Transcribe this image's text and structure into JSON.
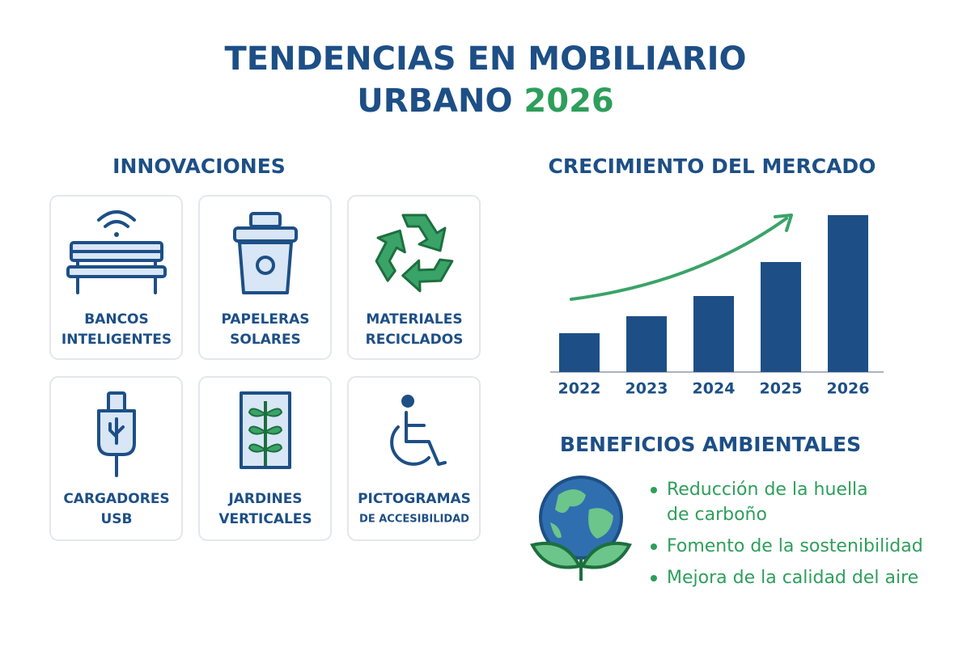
{
  "header": {
    "title_line1": "TENDENCIAS EN MOBILIARIO",
    "title_line2": "URBANO",
    "title_year": "2026"
  },
  "innovations": {
    "heading": "INNOVACIONES",
    "items": [
      {
        "line1": "BANCOS",
        "line2": "INTELIGENTES"
      },
      {
        "line1": "PAPELERAS",
        "line2": "SOLARES"
      },
      {
        "line1": "MATERIALES",
        "line2": "RECICLADOS"
      },
      {
        "line1": "CARGADORES",
        "line2": "USB"
      },
      {
        "line1": "JARDINES",
        "line2": "VERTICALES"
      },
      {
        "line1": "PICTOGRAMAS",
        "line2": "DE ACCESIBILIDAD"
      }
    ]
  },
  "chart_data": {
    "type": "bar",
    "title": "CRECIMIENTO DEL MERCADO",
    "categories": [
      "2022",
      "2023",
      "2024",
      "2025",
      "2026"
    ],
    "values": [
      48,
      69,
      94,
      136,
      194
    ],
    "color": "#1d4f86",
    "trend_color": "#3aa368"
  },
  "benefits": {
    "heading": "BENEFICIOS AMBIENTALES",
    "items": [
      [
        "Reducción de la huella",
        "de carboño"
      ],
      [
        "Fomento de la sostenibilidad"
      ],
      [
        "Mejora de la calidad del aire"
      ]
    ]
  }
}
